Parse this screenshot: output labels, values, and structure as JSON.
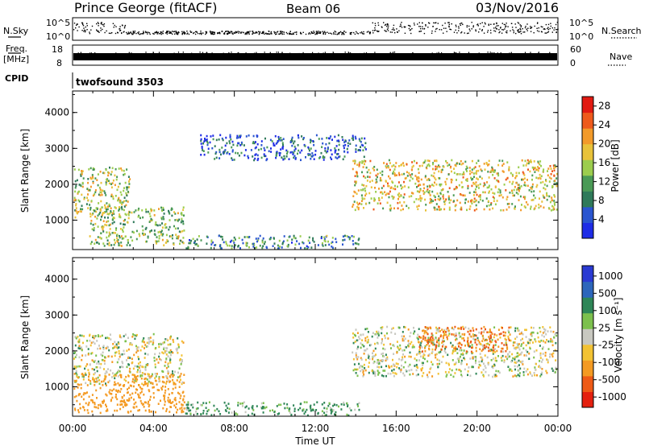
{
  "header": {
    "station": "Prince George (fitACF)",
    "beam": "Beam 06",
    "date": "03/Nov/2016"
  },
  "strip_labels": {
    "nsky": "N.Sky",
    "nsearch": "N.Search",
    "freq_line1": "Freq.",
    "freq_line2": "[MHz]",
    "nave": "Nave",
    "cpid": "CPID",
    "cpid_value": "twofsound 3503",
    "noise_ticks_left": [
      "10^5",
      "10^0"
    ],
    "noise_ticks_right": [
      "10^5",
      "10^0"
    ],
    "freq_ticks": [
      "18",
      "8"
    ],
    "nave_ticks": [
      "60",
      "0"
    ]
  },
  "colors": {
    "power_scale": [
      "#1e2ce6",
      "#2a55d0",
      "#2f7a5a",
      "#4a9a56",
      "#9ccd4e",
      "#e8c23a",
      "#f29a2a",
      "#ee5a1c",
      "#e11a12"
    ],
    "velocity_scale": [
      "#2a3ad2",
      "#2d66bb",
      "#2e8657",
      "#7cc04d",
      "#c8c8c0",
      "#f2c233",
      "#f49a22",
      "#ee5a16",
      "#e4200f"
    ]
  },
  "chart_data": [
    {
      "type": "heatmap",
      "name": "power-panel",
      "xlabel": "",
      "ylabel": "Slant Range [km]",
      "y_ticks": [
        1000,
        2000,
        3000,
        4000
      ],
      "ylim": [
        180,
        4600
      ],
      "xlim_hours": [
        0,
        24
      ],
      "colorbar": {
        "label": "Power [dB]",
        "ticks": [
          "4",
          "8",
          "12",
          "16",
          "20",
          "24",
          "28"
        ],
        "range": [
          0,
          30
        ]
      },
      "echo_regions": [
        {
          "t0": 0.0,
          "t1": 2.8,
          "r0": 1100,
          "r1": 2500,
          "level": 16
        },
        {
          "t0": 0.8,
          "t1": 5.5,
          "r0": 300,
          "r1": 1400,
          "level": 14
        },
        {
          "t0": 5.5,
          "t1": 14.2,
          "r0": 200,
          "r1": 600,
          "level": 10
        },
        {
          "t0": 13.8,
          "t1": 24.0,
          "r0": 1300,
          "r1": 2700,
          "level": 18
        },
        {
          "t0": 6.3,
          "t1": 14.5,
          "r0": 2700,
          "r1": 3400,
          "level": 6
        }
      ]
    },
    {
      "type": "heatmap",
      "name": "velocity-panel",
      "xlabel": "Time UT",
      "ylabel": "Slant Range [km]",
      "y_ticks": [
        1000,
        2000,
        3000,
        4000
      ],
      "ylim": [
        180,
        4600
      ],
      "x_ticks": [
        "00:00",
        "04:00",
        "08:00",
        "12:00",
        "16:00",
        "20:00",
        "00:00"
      ],
      "colorbar": {
        "label": "Velocity [m s⁻¹]",
        "ticks": [
          "1000",
          "500",
          "100",
          "25",
          "-25",
          "-100",
          "-500",
          "-1000"
        ]
      },
      "echo_regions": [
        {
          "t0": 0.0,
          "t1": 5.5,
          "r0": 1100,
          "r1": 2500,
          "velocity": 0
        },
        {
          "t0": 0.0,
          "t1": 5.5,
          "r0": 300,
          "r1": 1400,
          "velocity": -150
        },
        {
          "t0": 5.5,
          "t1": 14.2,
          "r0": 200,
          "r1": 600,
          "velocity": 80
        },
        {
          "t0": 13.8,
          "t1": 24.0,
          "r0": 1300,
          "r1": 2700,
          "velocity": 0
        },
        {
          "t0": 17.0,
          "t1": 21.6,
          "r0": 2000,
          "r1": 2700,
          "velocity": -300
        }
      ]
    }
  ]
}
